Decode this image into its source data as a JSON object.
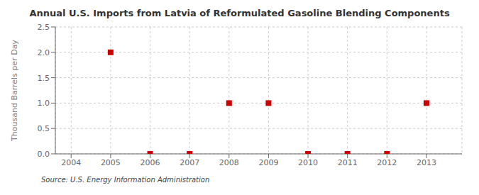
{
  "chart_data": {
    "type": "scatter",
    "title": "Annual U.S. Imports from Latvia of Reformulated Gasoline Blending Components",
    "ylabel": "Thousand Barrels per Day",
    "source": "Source: U.S. Energy Information Administration",
    "x": [
      2005,
      2006,
      2007,
      2008,
      2009,
      2010,
      2011,
      2012,
      2013
    ],
    "values": [
      2.0,
      0.0,
      0.0,
      1.0,
      1.0,
      0.0,
      0.0,
      0.0,
      1.0
    ],
    "color": "#cc0000",
    "marker": "square",
    "xlim": [
      2003.6,
      2013.9
    ],
    "xticks": [
      2004,
      2005,
      2006,
      2007,
      2008,
      2009,
      2010,
      2011,
      2012,
      2013
    ],
    "ylim": [
      0.0,
      2.5
    ],
    "yticks": [
      {
        "value": 0.0,
        "label": "0.0"
      },
      0.5,
      {
        "value": 1.0,
        "label": "1.0"
      },
      1.5,
      {
        "value": 2.0,
        "label": "2.0"
      },
      2.5
    ],
    "grid": true
  }
}
